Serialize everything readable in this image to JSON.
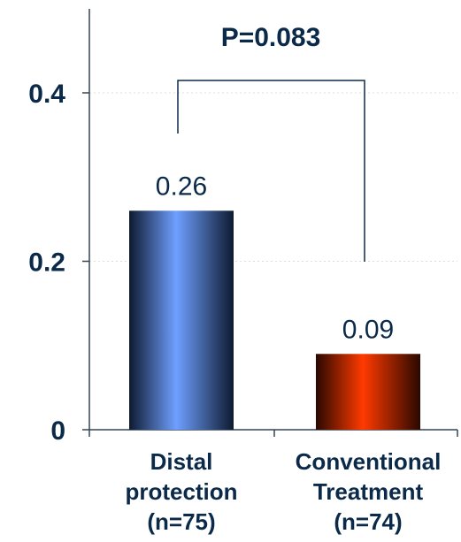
{
  "chart_data": {
    "type": "bar",
    "categories": [
      [
        "Distal",
        "protection",
        "(n=75)"
      ],
      [
        "Conventional",
        "Treatment",
        "(n=74)"
      ]
    ],
    "values": [
      0.26,
      0.09
    ],
    "value_labels": [
      "0.26",
      "0.09"
    ],
    "ylim": [
      0,
      0.5
    ],
    "yticks": [
      0,
      0.2,
      0.4
    ],
    "ytick_labels": [
      "0",
      "0.2",
      "0.4"
    ],
    "grid": true,
    "annotation": "P=0.083",
    "colors": {
      "bar_1": "#6fa0ff",
      "bar_1_dark": "#0e1a30",
      "bar_2": "#ff3a00",
      "bar_2_dark": "#2a0800",
      "text": "#0b2a4a",
      "axis": "#334455",
      "grid": "#dddddd"
    }
  }
}
